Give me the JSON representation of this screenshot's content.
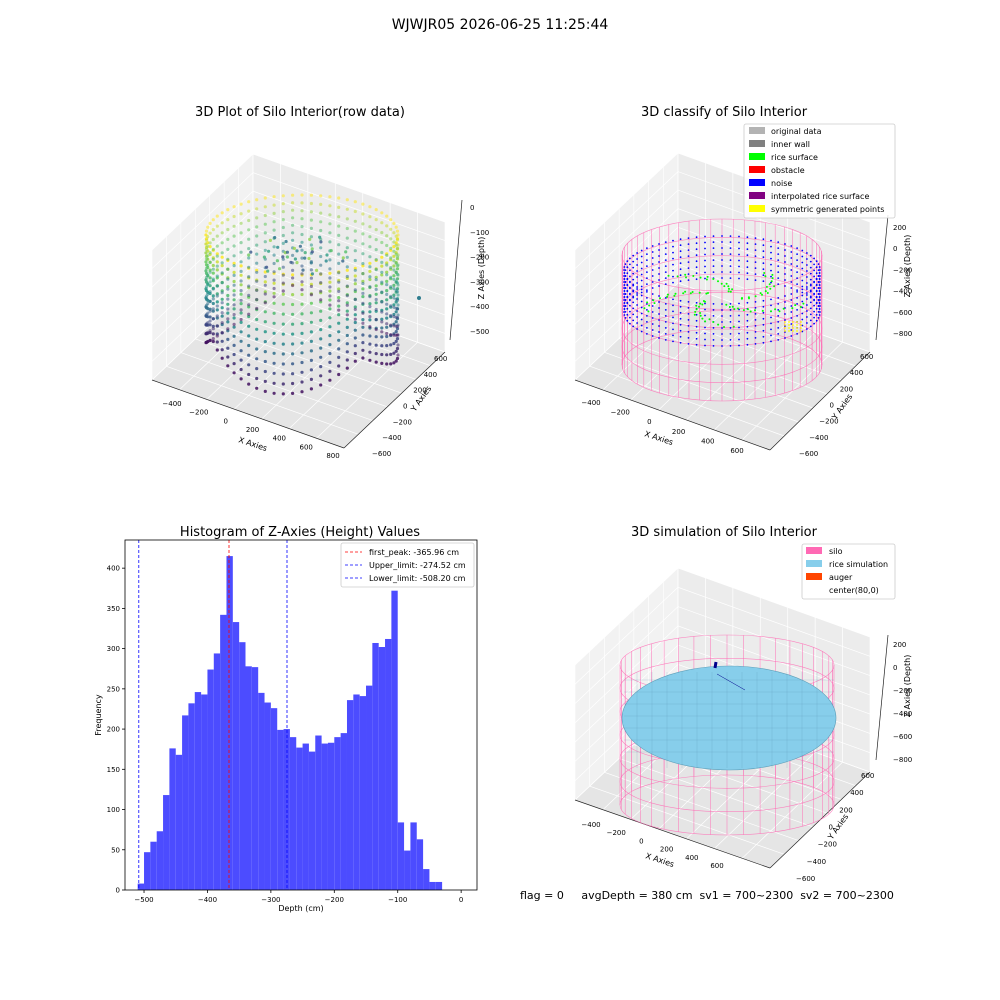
{
  "suptitle": "WJWJR05 2026-06-25 11:25:44",
  "footer": "flag = 0     avgDepth = 380 cm  sv1 = 700~2300  sv2 = 700~2300",
  "chart_data": [
    {
      "type": "scatter",
      "projection": "3d",
      "title": "3D Plot of Silo Interior(row data)",
      "xlabel": "X Axies",
      "ylabel": "Y Axies",
      "zlabel": "Z Axies (Depth)",
      "xticks": [
        "−400",
        "−200",
        "0",
        "200",
        "400",
        "600",
        "800"
      ],
      "yticks": [
        "−600",
        "−400",
        "−200",
        "0",
        "200",
        "400",
        "600"
      ],
      "zticks": [
        "0",
        "−100",
        "−200",
        "−300",
        "−400",
        "−500"
      ],
      "colormap": "viridis",
      "grid": true
    },
    {
      "type": "scatter",
      "projection": "3d",
      "title": "3D classify of Silo Interior",
      "xlabel": "X Axies",
      "ylabel": "Y Axies",
      "zlabel": "Z Axies (Depth)",
      "xticks": [
        "−400",
        "−200",
        "0",
        "200",
        "400",
        "600"
      ],
      "yticks": [
        "−600",
        "−400",
        "−200",
        "0",
        "200",
        "400",
        "600"
      ],
      "zticks": [
        "200",
        "0",
        "−200",
        "−400",
        "−600",
        "−800"
      ],
      "legend_position": "top-right",
      "legend": [
        {
          "label": "original data",
          "color": "#b3b3b3"
        },
        {
          "label": "inner wall",
          "color": "#808080"
        },
        {
          "label": "rice surface",
          "color": "#00ff00"
        },
        {
          "label": "obstacle",
          "color": "#ff0000"
        },
        {
          "label": "noise",
          "color": "#0000ff"
        },
        {
          "label": "interpolated rice surface",
          "color": "#800080"
        },
        {
          "label": "symmetric generated points",
          "color": "#ffff00"
        }
      ],
      "grid": true
    },
    {
      "type": "bar",
      "title": "Histogram of Z-Axies (Height) Values",
      "xlabel": "Depth (cm)",
      "ylabel": "Frequency",
      "xlim": [
        -530,
        25
      ],
      "ylim": [
        0,
        435
      ],
      "xticks": [
        -500,
        -400,
        -300,
        -200,
        -100,
        0
      ],
      "xticklabels": [
        "−500",
        "−400",
        "−300",
        "−200",
        "−100",
        "0"
      ],
      "yticks": [
        0,
        50,
        100,
        150,
        200,
        250,
        300,
        350,
        400
      ],
      "bin_start": -510,
      "bin_width": 10,
      "values": [
        8,
        47,
        60,
        73,
        118,
        176,
        168,
        217,
        232,
        246,
        243,
        274,
        294,
        342,
        415,
        333,
        308,
        278,
        277,
        245,
        233,
        226,
        199,
        200,
        190,
        177,
        182,
        172,
        192,
        182,
        183,
        190,
        195,
        236,
        243,
        241,
        254,
        307,
        302,
        312,
        372,
        84,
        49,
        84,
        63,
        26,
        10,
        10
      ],
      "bar_color": "#4c4cff",
      "vlines": [
        {
          "label": "first_peak: -365.96 cm",
          "x": -365.96,
          "color": "#ff0000"
        },
        {
          "label": "Upper_limit: -274.52 cm",
          "x": -274.52,
          "color": "#0000ff"
        },
        {
          "label": "Lower_limit: -508.20 cm",
          "x": -508.2,
          "color": "#0000ff"
        }
      ],
      "legend_position": "top-right"
    },
    {
      "type": "surface",
      "projection": "3d",
      "title": "3D simulation of Silo Interior",
      "xlabel": "X Axies",
      "ylabel": "Y Axies",
      "zlabel": "Z Axies (Depth)",
      "xticks": [
        "−400",
        "−200",
        "0",
        "200",
        "400",
        "600"
      ],
      "yticks": [
        "−600",
        "−400",
        "−200",
        "0",
        "200",
        "400",
        "600"
      ],
      "zticks": [
        "200",
        "0",
        "−200",
        "−400",
        "−600",
        "−800"
      ],
      "legend_position": "top-right",
      "legend": [
        {
          "label": "silo",
          "color": "#ff69b4"
        },
        {
          "label": "rice simulation",
          "color": "#87ceeb"
        },
        {
          "label": "auger",
          "color": "#ff4500"
        },
        {
          "label": "center(80,0)",
          "color": null
        }
      ],
      "grid": true
    }
  ]
}
